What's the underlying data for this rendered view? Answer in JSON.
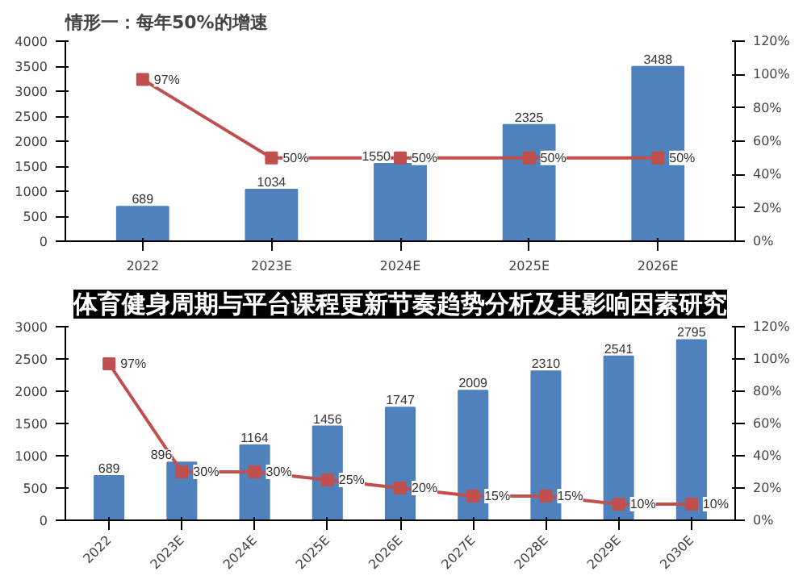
{
  "chart_data": [
    {
      "type": "bar",
      "title": "情形一：每年50%的增速",
      "categories": [
        "2022",
        "2023E",
        "2024E",
        "2025E",
        "2026E"
      ],
      "series": [
        {
          "type": "bar",
          "color": "#4f81bd",
          "values": [
            689,
            1034,
            1550,
            2325,
            3488
          ],
          "value_labels": [
            "689",
            "1034",
            "1550",
            "2325",
            "3488"
          ]
        },
        {
          "type": "line",
          "axis": "y2",
          "color": "#c0504d",
          "marker": "square",
          "values": [
            97,
            50,
            50,
            50,
            50
          ],
          "value_labels": [
            "97%",
            "50%",
            "50%",
            "50%",
            "50%"
          ]
        }
      ],
      "ylim": [
        0,
        4000
      ],
      "yticks": [
        0,
        500,
        1000,
        1500,
        2000,
        2500,
        3000,
        3500,
        4000
      ],
      "y2lim": [
        0,
        120
      ],
      "y2ticks": [
        {
          "value": 0,
          "label": "0%"
        },
        {
          "value": 20,
          "label": "20%"
        },
        {
          "value": 40,
          "label": "40%"
        },
        {
          "value": 60,
          "label": "60%"
        },
        {
          "value": 80,
          "label": "80%"
        },
        {
          "value": 100,
          "label": "100%"
        },
        {
          "value": 120,
          "label": "120%"
        }
      ],
      "grid": false
    },
    {
      "type": "bar",
      "title": "体育健身周期与平台课程更新节奏趋势分析及其影响因素研究",
      "categories": [
        "2022",
        "2023E",
        "2024E",
        "2025E",
        "2026E",
        "2027E",
        "2028E",
        "2029E",
        "2030E"
      ],
      "series": [
        {
          "type": "bar",
          "color": "#4f81bd",
          "values": [
            689,
            896,
            1164,
            1456,
            1747,
            2009,
            2310,
            2541,
            2795
          ],
          "value_labels": [
            "689",
            "896",
            "1164",
            "1456",
            "1747",
            "2009",
            "2310",
            "2541",
            "2795"
          ]
        },
        {
          "type": "line",
          "axis": "y2",
          "color": "#c0504d",
          "marker": "square",
          "values": [
            97,
            30,
            30,
            25,
            20,
            15,
            15,
            10,
            10
          ],
          "value_labels": [
            "97%",
            "30%",
            "30%",
            "25%",
            "20%",
            "15%",
            "15%",
            "10%",
            "10%"
          ]
        }
      ],
      "ylim": [
        0,
        3000
      ],
      "yticks": [
        0,
        500,
        1000,
        1500,
        2000,
        2500,
        3000
      ],
      "y2lim": [
        0,
        120
      ],
      "y2ticks": [
        {
          "value": 0,
          "label": "0%"
        },
        {
          "value": 20,
          "label": "20%"
        },
        {
          "value": 40,
          "label": "40%"
        },
        {
          "value": 60,
          "label": "60%"
        },
        {
          "value": 80,
          "label": "80%"
        },
        {
          "value": 100,
          "label": "100%"
        },
        {
          "value": 120,
          "label": "120%"
        }
      ],
      "grid": false
    }
  ]
}
